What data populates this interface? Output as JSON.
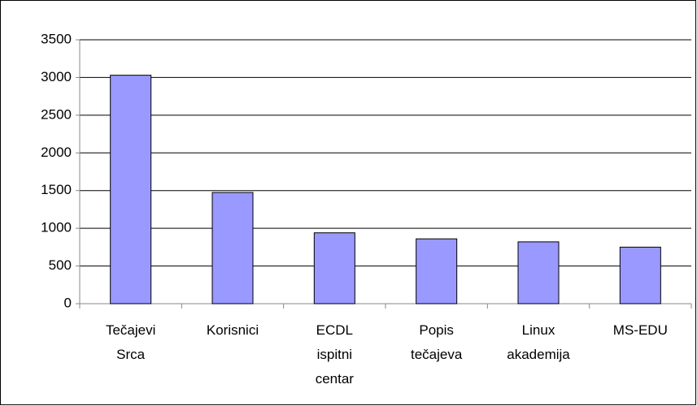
{
  "chart_data": {
    "type": "bar",
    "categories": [
      "Tečajevi Srca",
      "Korisnici",
      "ECDL ispitni centar",
      "Popis tečajeva",
      "Linux akademija",
      "MS-EDU"
    ],
    "values": [
      3030,
      1475,
      940,
      860,
      820,
      750
    ],
    "color": "#9999ff",
    "ylim": [
      0,
      3500
    ],
    "yticks": [
      0,
      500,
      1000,
      1500,
      2000,
      2500,
      3000,
      3500
    ],
    "grid": true
  }
}
